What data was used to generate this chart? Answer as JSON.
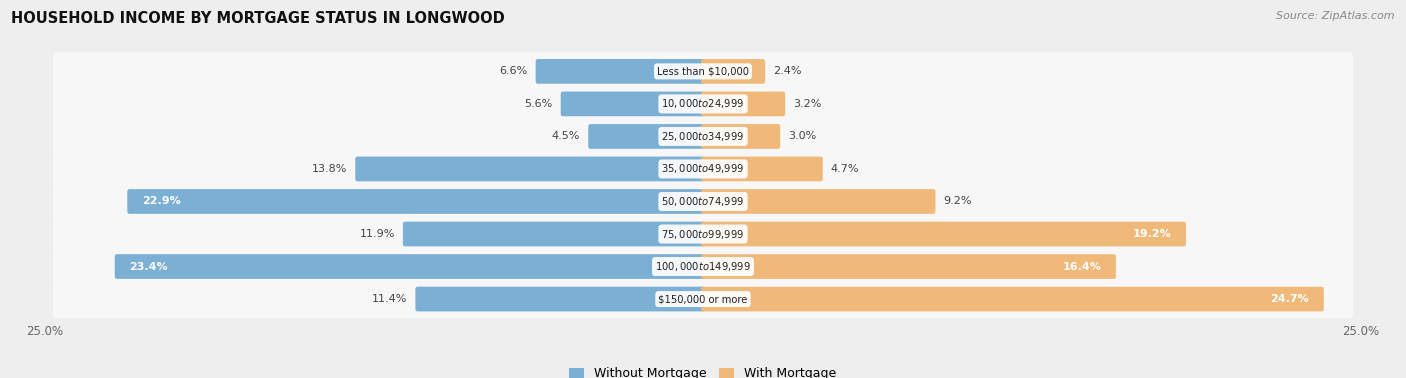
{
  "title": "HOUSEHOLD INCOME BY MORTGAGE STATUS IN LONGWOOD",
  "source": "Source: ZipAtlas.com",
  "categories": [
    "Less than $10,000",
    "$10,000 to $24,999",
    "$25,000 to $34,999",
    "$35,000 to $49,999",
    "$50,000 to $74,999",
    "$75,000 to $99,999",
    "$100,000 to $149,999",
    "$150,000 or more"
  ],
  "without_mortgage": [
    6.6,
    5.6,
    4.5,
    13.8,
    22.9,
    11.9,
    23.4,
    11.4
  ],
  "with_mortgage": [
    2.4,
    3.2,
    3.0,
    4.7,
    9.2,
    19.2,
    16.4,
    24.7
  ],
  "color_without": "#7bafd4",
  "color_with": "#f0b97a",
  "bg_color": "#eeeeee",
  "row_color": "#f7f7f7",
  "axis_label_left": "25.0%",
  "axis_label_right": "25.0%",
  "max_val": 25.0,
  "legend_without": "Without Mortgage",
  "legend_with": "With Mortgage"
}
